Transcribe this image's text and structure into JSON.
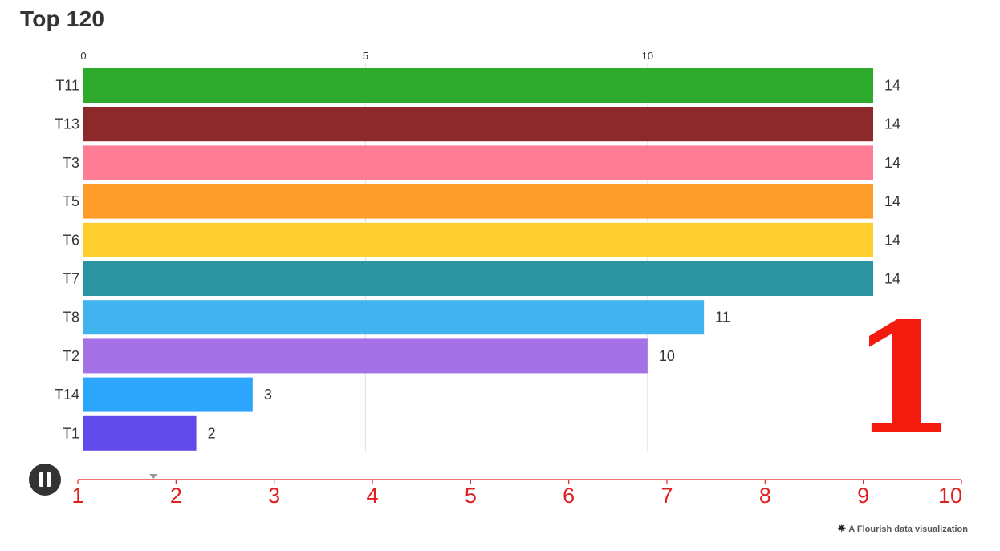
{
  "title": "Top 120",
  "current_period": "1",
  "footer": {
    "icon": "flourish-star-icon",
    "text": "A Flourish data visualization"
  },
  "timeline": {
    "labels": [
      "1",
      "2",
      "3",
      "4",
      "5",
      "6",
      "7",
      "8",
      "9",
      "10"
    ],
    "position": 1.77,
    "color": "#e02020"
  },
  "colors": {
    "T11": "#2aa829",
    "T13": "#8b2527",
    "T3": "#ff7a92",
    "T5": "#ff9b28",
    "T6": "#ffce2b",
    "T7": "#27929e",
    "T8": "#3db3f0",
    "T2": "#a26ee6",
    "T14": "#29a4fe",
    "T1": "#5e48ea",
    "period": "#f31b0e"
  },
  "chart_data": {
    "type": "bar",
    "orientation": "horizontal",
    "title": "Top 120",
    "categories": [
      "T11",
      "T13",
      "T3",
      "T5",
      "T6",
      "T7",
      "T8",
      "T2",
      "T14",
      "T1"
    ],
    "values": [
      14,
      14,
      14,
      14,
      14,
      14,
      11,
      10,
      3,
      2
    ],
    "x_ticks": [
      0,
      5,
      10
    ],
    "x_tick_labels": [
      "0",
      "5",
      "10"
    ],
    "xlim": [
      0,
      14.25
    ],
    "xlabel": "",
    "ylabel": "",
    "grid": true,
    "tick_position": "top"
  }
}
